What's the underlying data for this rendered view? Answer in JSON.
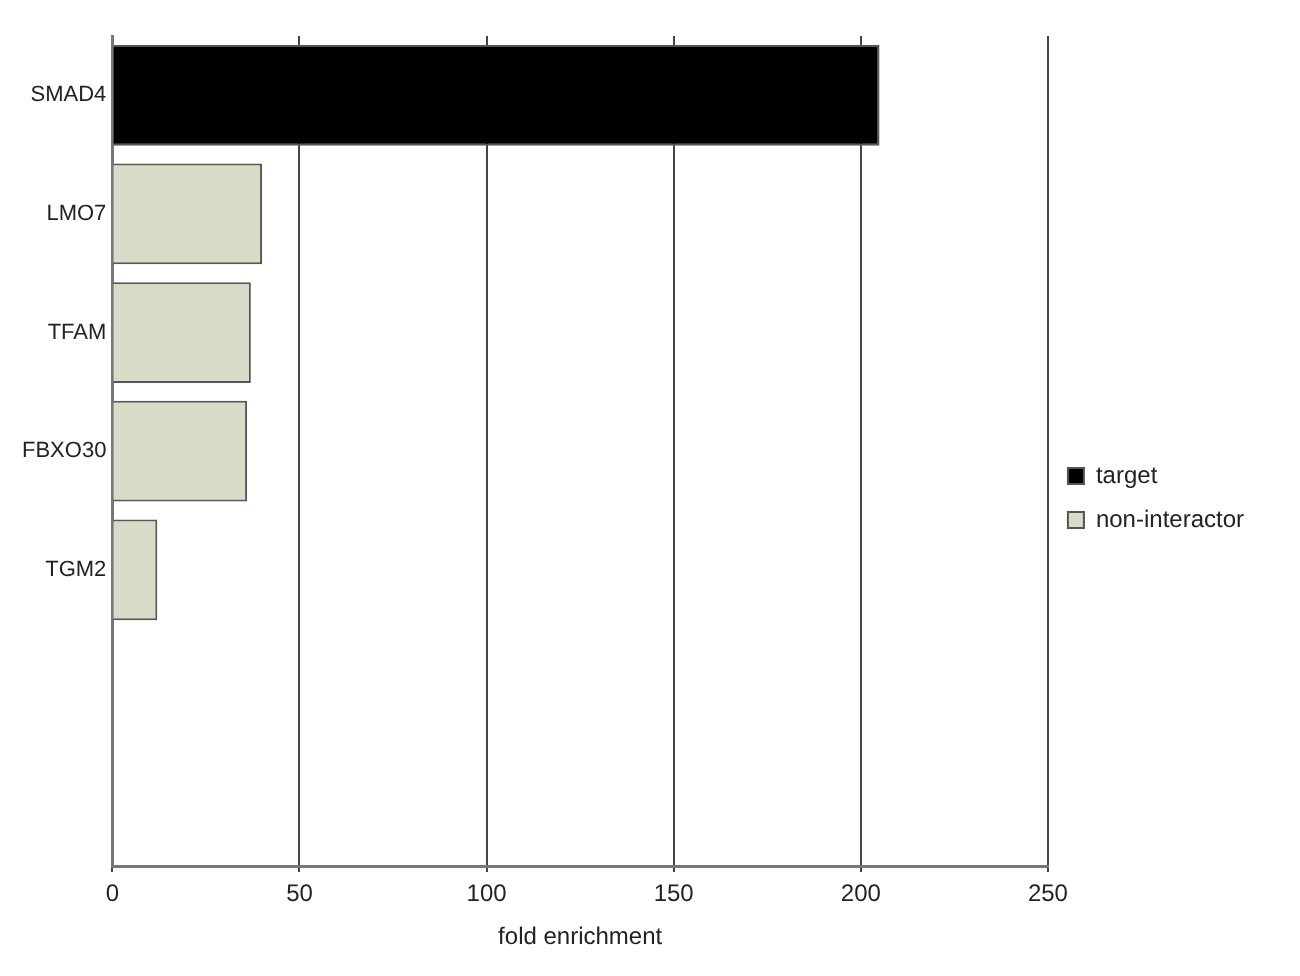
{
  "chart_data": {
    "type": "bar",
    "orientation": "horizontal",
    "stacked": true,
    "xlabel": "fold enrichment",
    "categories": [
      "SMAD4",
      "LMO7",
      "TFAM",
      "FBXO30",
      "TGM2",
      null,
      null
    ],
    "series": [
      {
        "name": "target",
        "color": "#000000",
        "values": [
          205,
          null,
          null,
          null,
          null,
          null,
          null
        ]
      },
      {
        "name": "non-interactor",
        "color": "#d8dbc6",
        "values": [
          null,
          40,
          37,
          36,
          12,
          null,
          null
        ]
      }
    ],
    "xlim": [
      0,
      250
    ],
    "xticks": [
      0,
      50,
      100,
      150,
      200,
      250
    ],
    "grid": "x",
    "legend": "right"
  }
}
